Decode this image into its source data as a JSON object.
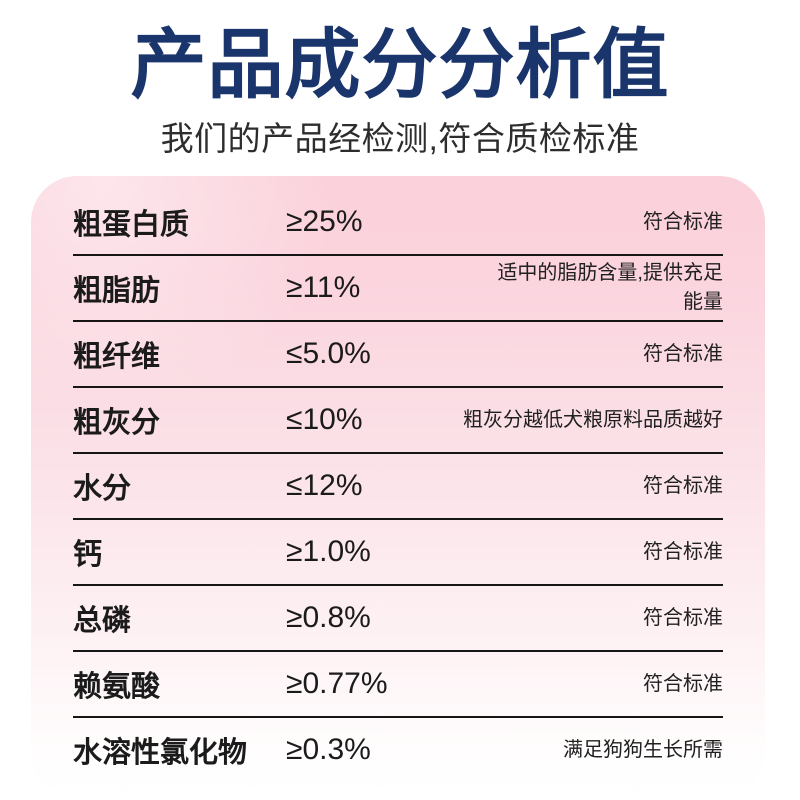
{
  "header": {
    "title": "产品成分分析值",
    "subtitle": "我们的产品经检测,符合质检标准"
  },
  "colors": {
    "title_navy": "#1a346c",
    "subtitle_gray": "#2d2d2d",
    "card_pink_top": "#fbd1db",
    "card_pink_mid": "#fbe2e8",
    "card_fade_bottom": "#ffffff",
    "divider_dark": "#161616",
    "text_dark": "#1b1b1b"
  },
  "table": {
    "rows": [
      {
        "name": "粗蛋白质",
        "value": "≥25%",
        "note": "符合标准"
      },
      {
        "name": "粗脂肪",
        "value": "≥11%",
        "note": "适中的脂肪含量,提供充足\n能量"
      },
      {
        "name": "粗纤维",
        "value": "≤5.0%",
        "note": "符合标准"
      },
      {
        "name": "粗灰分",
        "value": "≤10%",
        "note": "粗灰分越低犬粮原料品质越好"
      },
      {
        "name": "水分",
        "value": "≤12%",
        "note": "符合标准"
      },
      {
        "name": "钙",
        "value": "≥1.0%",
        "note": "符合标准"
      },
      {
        "name": "总磷",
        "value": "≥0.8%",
        "note": "符合标准"
      },
      {
        "name": "赖氨酸",
        "value": "≥0.77%",
        "note": "符合标准"
      },
      {
        "name": "水溶性氯化物",
        "value": "≥0.3%",
        "note": "满足狗狗生长所需"
      }
    ]
  }
}
